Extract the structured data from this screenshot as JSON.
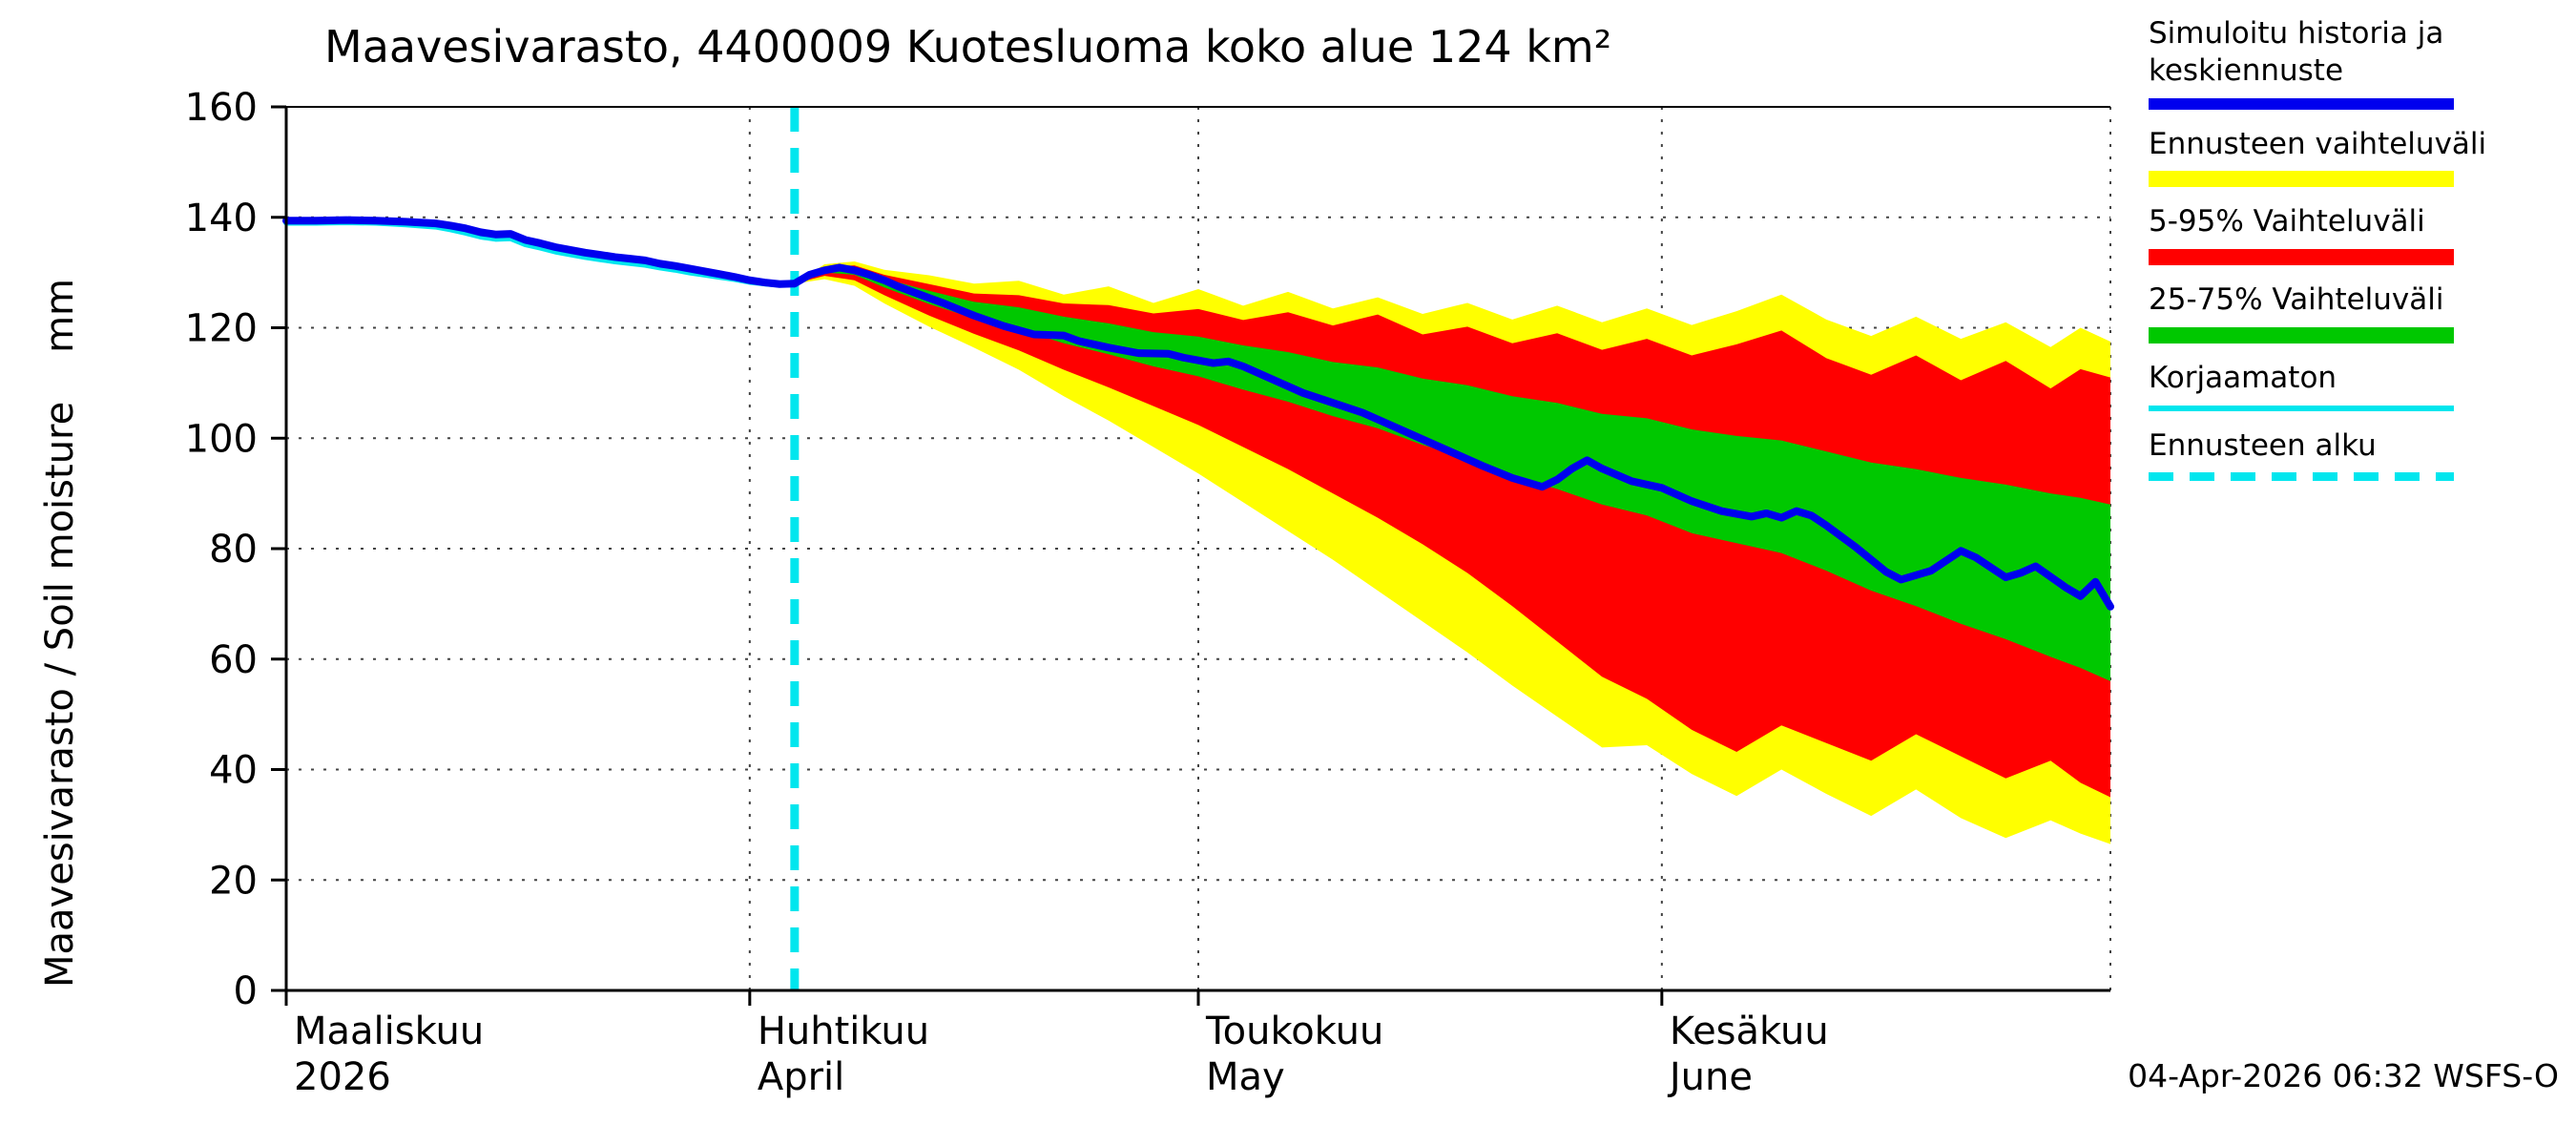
{
  "title": "Maavesivarasto, 4400009 Kuotesluoma koko alue 124 km²",
  "ylabel": "Maavesivarasto / Soil moisture    mm",
  "footer": {
    "timestamp": "04-Apr-2026 06:32 WSFS-O"
  },
  "legend": {
    "position": "right-top",
    "items": [
      {
        "label": "Simuloitu historia ja keskiennuste",
        "color_key": "blue",
        "style": "line",
        "height": 12
      },
      {
        "label": "Ennusteen vaihteluväli",
        "color_key": "yellow",
        "style": "band",
        "height": 17
      },
      {
        "label": "5-95% Vaihteluväli",
        "color_key": "red",
        "style": "band",
        "height": 17
      },
      {
        "label": "25-75% Vaihteluväli",
        "color_key": "green",
        "style": "band",
        "height": 17
      },
      {
        "label": "Korjaamaton",
        "color_key": "cyan",
        "style": "line",
        "height": 6
      },
      {
        "label": "Ennusteen alku",
        "color_key": "cyan",
        "style": "dashed",
        "height": 9
      }
    ]
  },
  "chart_data": {
    "type": "area",
    "title": "Maavesivarasto, 4400009 Kuotesluoma koko alue 124 km²",
    "xlabel": "",
    "ylabel": "Maavesivarasto / Soil moisture mm",
    "grid": "dotted",
    "x_unit": "days since 2026-03-01",
    "xlim": [
      0,
      122
    ],
    "ylim": [
      0,
      160
    ],
    "yticks": [
      0,
      20,
      40,
      60,
      80,
      100,
      120,
      140,
      160
    ],
    "month_ticks": [
      {
        "day": 0,
        "fi": "Maaliskuu",
        "en": "2026"
      },
      {
        "day": 31,
        "fi": "Huhtikuu",
        "en": "April"
      },
      {
        "day": 61,
        "fi": "Toukokuu",
        "en": "May"
      },
      {
        "day": 92,
        "fi": "Kesäkuu",
        "en": "June"
      }
    ],
    "forecast_start_day": 34,
    "colors": {
      "blue": "#0000ee",
      "cyan": "#00e6ee",
      "yellow": "#ffff00",
      "red": "#ff0000",
      "green": "#00c800"
    },
    "history": {
      "name": "Simuloitu historia (mm)",
      "x": [
        0,
        2,
        4,
        6,
        8,
        10,
        11,
        12,
        13,
        14,
        15,
        16,
        17,
        18,
        19,
        20,
        21,
        22,
        23,
        24,
        25,
        26,
        27,
        28,
        29,
        30,
        31,
        32,
        33,
        34
      ],
      "y": [
        139.4,
        139.4,
        139.5,
        139.4,
        139.2,
        138.9,
        138.5,
        138.0,
        137.3,
        136.9,
        137.0,
        135.9,
        135.3,
        134.6,
        134.1,
        133.6,
        133.2,
        132.8,
        132.5,
        132.2,
        131.6,
        131.2,
        130.7,
        130.2,
        129.7,
        129.2,
        128.6,
        128.2,
        127.9,
        128.0
      ]
    },
    "korjaamaton": {
      "name": "Korjaamaton (mm)",
      "x": [
        0,
        2,
        4,
        6,
        8,
        10,
        11,
        12,
        13,
        14,
        15,
        16,
        17,
        18,
        19,
        20,
        21,
        22,
        23,
        24,
        25,
        26,
        27,
        28,
        29,
        30,
        31,
        32,
        33,
        34
      ],
      "y": [
        139.0,
        139.0,
        139.1,
        139.0,
        138.7,
        138.3,
        137.8,
        137.2,
        136.5,
        136.1,
        136.2,
        135.1,
        134.5,
        133.8,
        133.3,
        132.8,
        132.4,
        132.0,
        131.7,
        131.4,
        130.9,
        130.5,
        130.0,
        129.6,
        129.2,
        128.8,
        128.3,
        128.0,
        127.8,
        128.0
      ]
    },
    "median": {
      "name": "Keskiennuste (mm)",
      "x": [
        34,
        35,
        36,
        37,
        38,
        39,
        40,
        41,
        42,
        44,
        46,
        48,
        50,
        52,
        53,
        55,
        57,
        59,
        60,
        62,
        63,
        64,
        66,
        68,
        70,
        72,
        74,
        76,
        78,
        80,
        82,
        84,
        85,
        86,
        87,
        88,
        90,
        92,
        94,
        96,
        98,
        99,
        100,
        101,
        102,
        103,
        105,
        107,
        108,
        110,
        112,
        113,
        115,
        116,
        117,
        119,
        120,
        121,
        122
      ],
      "y": [
        128.0,
        129.6,
        130.4,
        130.9,
        130.4,
        129.6,
        128.6,
        127.4,
        126.4,
        124.4,
        122.2,
        120.3,
        118.8,
        118.6,
        117.6,
        116.4,
        115.4,
        115.3,
        114.6,
        113.6,
        113.9,
        113.0,
        110.6,
        108.2,
        106.4,
        104.6,
        102.2,
        99.8,
        97.4,
        95.0,
        92.8,
        91.2,
        92.5,
        94.5,
        96.0,
        94.5,
        92.2,
        91.0,
        88.6,
        86.8,
        85.8,
        86.4,
        85.6,
        86.8,
        86.0,
        84.2,
        80.2,
        75.8,
        74.4,
        76.0,
        79.6,
        78.4,
        74.8,
        75.6,
        76.8,
        73.0,
        71.4,
        74.0,
        69.5
      ]
    },
    "band_days": [
      34,
      36,
      38,
      40,
      43,
      46,
      49,
      52,
      55,
      58,
      61,
      64,
      67,
      70,
      73,
      76,
      79,
      82,
      85,
      88,
      91,
      94,
      97,
      100,
      103,
      106,
      109,
      112,
      115,
      118,
      120,
      122
    ],
    "band_yellow": {
      "name": "Ennusteen vaihteluväli (mm)",
      "upper": [
        128.0,
        131.5,
        132.0,
        130.5,
        129.5,
        128.0,
        128.5,
        126.0,
        127.5,
        124.5,
        127.0,
        124.0,
        126.5,
        123.5,
        125.5,
        122.5,
        124.5,
        121.5,
        124.0,
        121.0,
        123.5,
        120.5,
        123.0,
        126.0,
        121.5,
        118.5,
        122.0,
        118.0,
        121.0,
        116.5,
        120.0,
        117.5
      ],
      "lower": [
        128.0,
        128.8,
        127.6,
        124.4,
        120.2,
        116.4,
        112.4,
        107.6,
        103.2,
        98.4,
        93.6,
        88.4,
        83.2,
        78.0,
        72.4,
        66.8,
        61.2,
        55.2,
        49.6,
        44.0,
        44.4,
        39.2,
        35.2,
        40.0,
        35.6,
        31.6,
        36.4,
        31.2,
        27.6,
        30.8,
        28.4,
        26.5
      ]
    },
    "band_red": {
      "name": "5-95% vaihteluväli (mm)",
      "upper": [
        128.0,
        131.0,
        131.3,
        129.6,
        127.9,
        126.2,
        125.9,
        124.4,
        124.1,
        122.6,
        123.4,
        121.4,
        122.8,
        120.4,
        122.4,
        118.8,
        120.2,
        117.2,
        119.0,
        116.0,
        118.0,
        115.0,
        117.0,
        119.5,
        114.5,
        111.5,
        115.0,
        110.5,
        114.0,
        109.0,
        112.5,
        111.0
      ],
      "lower": [
        128.0,
        129.4,
        128.6,
        125.9,
        122.2,
        118.9,
        115.9,
        112.4,
        109.2,
        105.8,
        102.4,
        98.4,
        94.4,
        90.0,
        85.6,
        80.8,
        75.6,
        69.6,
        63.2,
        56.8,
        52.8,
        47.2,
        43.2,
        48.0,
        44.8,
        41.6,
        46.4,
        42.4,
        38.4,
        41.6,
        37.6,
        35.0
      ]
    },
    "band_green": {
      "name": "25-75% vaihteluväli (mm)",
      "upper": [
        128.0,
        130.8,
        130.8,
        128.9,
        126.7,
        124.7,
        123.7,
        122.0,
        120.8,
        119.2,
        118.4,
        116.8,
        115.6,
        113.8,
        112.8,
        110.8,
        109.6,
        107.6,
        106.4,
        104.4,
        103.6,
        101.6,
        100.4,
        99.6,
        97.6,
        95.6,
        94.4,
        92.8,
        91.6,
        90.0,
        89.2,
        88.0
      ],
      "lower": [
        128.0,
        130.0,
        129.6,
        127.3,
        124.3,
        121.7,
        119.7,
        117.2,
        115.2,
        113.0,
        111.2,
        108.8,
        106.6,
        104.0,
        101.8,
        98.8,
        96.4,
        93.2,
        90.8,
        88.0,
        86.0,
        82.8,
        81.0,
        79.2,
        76.0,
        72.4,
        69.6,
        66.4,
        63.6,
        60.4,
        58.4,
        56.0
      ]
    }
  }
}
